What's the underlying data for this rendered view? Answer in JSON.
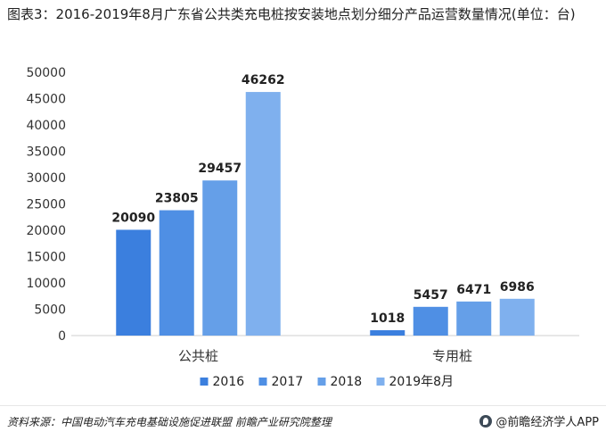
{
  "title": "图表3：2016-2019年8月广东省公共类充电桩按安装地点划分细分产品运营数量情况(单位：台)",
  "footer": {
    "source": "资料来源：中国电动汽车充电基础设施促进联盟 前瞻产业研究院整理",
    "brand": "@前瞻经济学人APP",
    "brand_icon": "qianzhan-logo-icon"
  },
  "chart_data": {
    "type": "bar",
    "title": "",
    "xlabel": "",
    "ylabel": "",
    "categories": [
      "公共桩",
      "专用桩"
    ],
    "series": [
      {
        "name": "2016",
        "values": [
          20090,
          1018
        ],
        "color": "#3b7fde"
      },
      {
        "name": "2017",
        "values": [
          23805,
          5457
        ],
        "color": "#4f8fe4"
      },
      {
        "name": "2018",
        "values": [
          29457,
          6471
        ],
        "color": "#659fe8"
      },
      {
        "name": "2019年8月",
        "values": [
          46262,
          6986
        ],
        "color": "#7fb0ee"
      }
    ],
    "ylim": [
      0,
      50000
    ],
    "yticks": [
      "0",
      "5000",
      "10000",
      "15000",
      "20000",
      "25000",
      "30000",
      "35000",
      "40000",
      "45000",
      "50000"
    ],
    "grid": false,
    "legend_position": "bottom"
  }
}
